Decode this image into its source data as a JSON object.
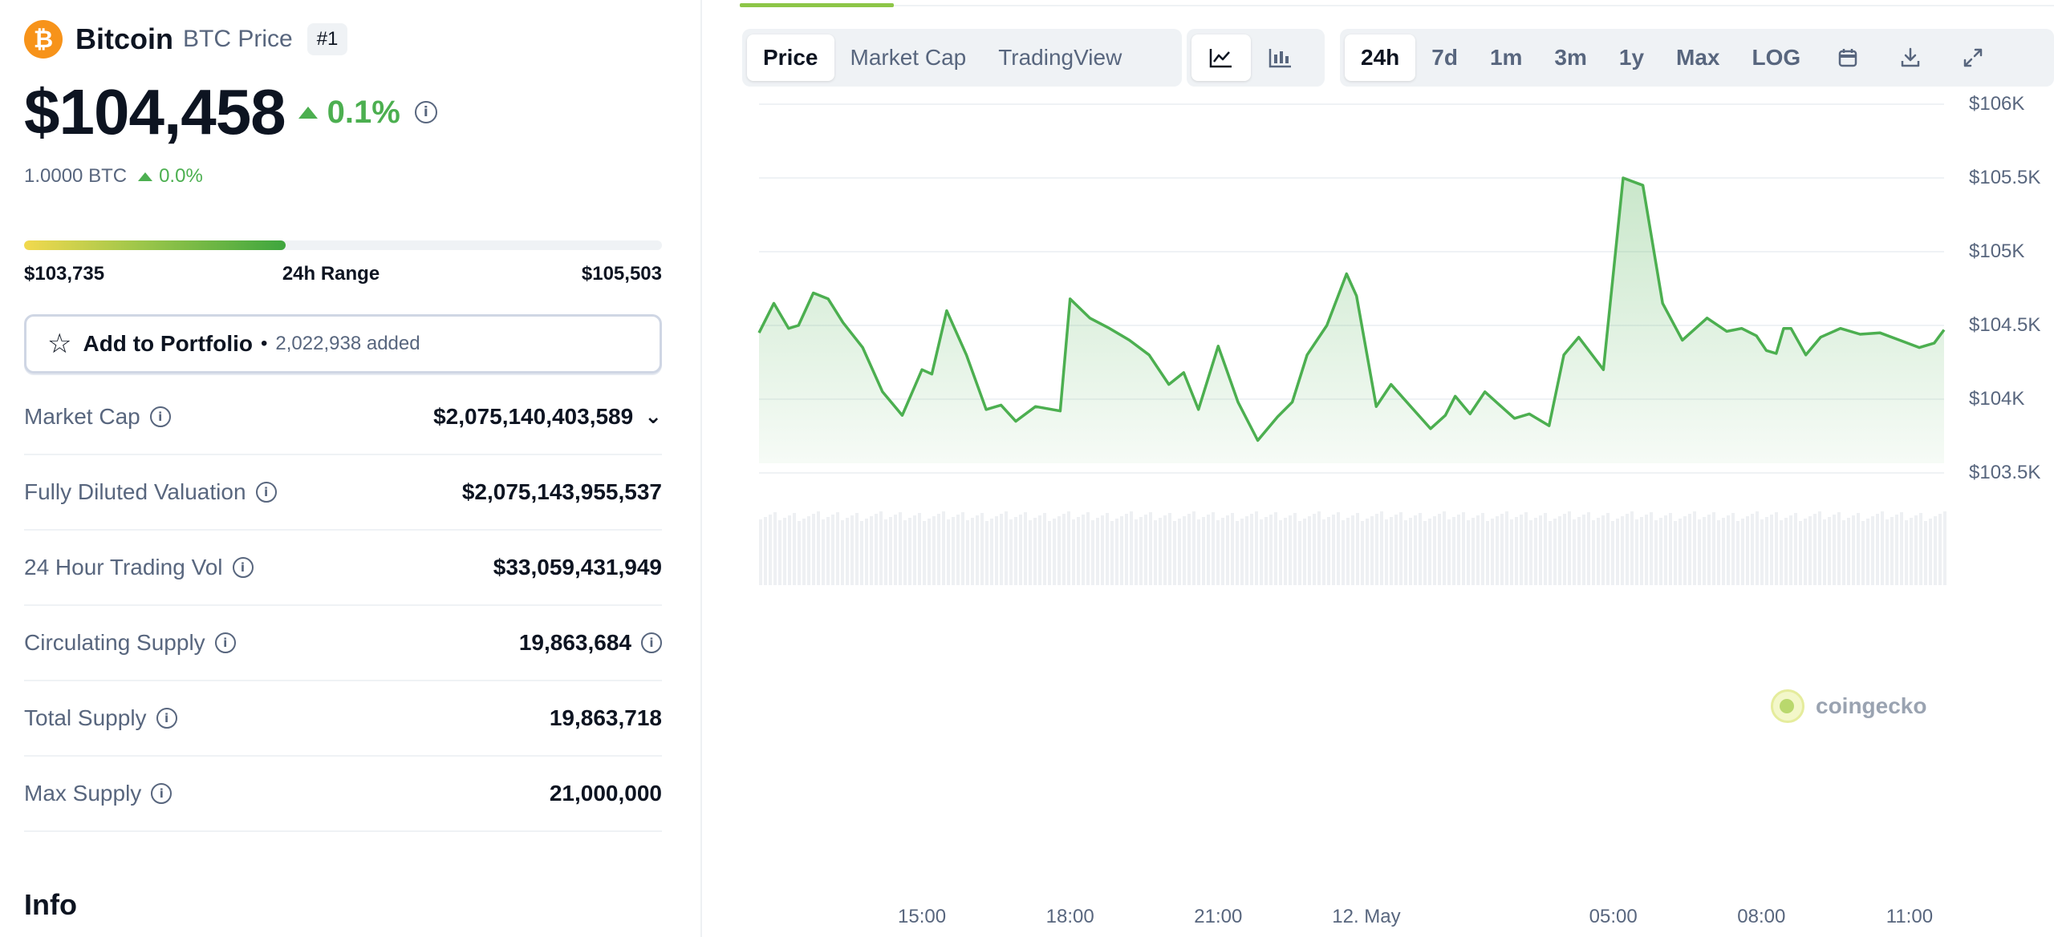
{
  "coin": {
    "logo_symbol": "₿",
    "name": "Bitcoin",
    "subtitle": "BTC Price",
    "rank": "#1",
    "price": "$104,458",
    "change_24h": "0.1%",
    "btc_value": "1.0000 BTC",
    "btc_change": "0.0%"
  },
  "range": {
    "low": "$103,735",
    "label": "24h Range",
    "high": "$105,503",
    "position_fraction": 0.41
  },
  "portfolio": {
    "label": "Add to Portfolio",
    "separator": "•",
    "added": "2,022,938 added"
  },
  "stats": [
    {
      "label": "Market Cap",
      "value": "$2,075,140,403,589"
    },
    {
      "label": "Fully Diluted Valuation",
      "value": "$2,075,143,955,537"
    },
    {
      "label": "24 Hour Trading Vol",
      "value": "$33,059,431,949"
    },
    {
      "label": "Circulating Supply",
      "value": "19,863,684"
    },
    {
      "label": "Total Supply",
      "value": "19,863,718"
    },
    {
      "label": "Max Supply",
      "value": "21,000,000"
    }
  ],
  "info_heading": "Info",
  "tabs": {
    "chart_types": [
      "Price",
      "Market Cap",
      "TradingView"
    ],
    "active_chart_type": "Price",
    "view_icons": [
      "line-chart-icon",
      "candlestick-chart-icon"
    ],
    "timeframes": [
      "24h",
      "7d",
      "1m",
      "3m",
      "1y",
      "Max",
      "LOG"
    ],
    "active_timeframe": "24h",
    "tool_icons": [
      "calendar-icon",
      "download-icon",
      "expand-icon"
    ]
  },
  "watermark": "coingecko",
  "colors": {
    "accent_green": "#4caf50",
    "bitcoin_orange": "#f7931a",
    "text_primary": "#0d1421",
    "text_secondary": "#58667e"
  },
  "chart_data": {
    "type": "area",
    "y_ticks": [
      "$106K",
      "$105.5K",
      "$105K",
      "$104.5K",
      "$104K",
      "$103.5K"
    ],
    "y_tick_values": [
      106000,
      105500,
      105000,
      104500,
      104000,
      103500
    ],
    "ylim": [
      103500,
      106000
    ],
    "x_ticks": [
      "15:00",
      "18:00",
      "21:00",
      "12. May",
      "05:00",
      "08:00",
      "11:00"
    ],
    "x_tick_hours": [
      15,
      18,
      21,
      24,
      29,
      32,
      35
    ],
    "x_range_hours": [
      11.7,
      35.7
    ],
    "grid": true,
    "series": [
      {
        "x": [
          11.7,
          12.0,
          12.3,
          12.5,
          12.8,
          13.1,
          13.4,
          13.8,
          14.2,
          14.6,
          15.0,
          15.2,
          15.5,
          15.9,
          16.3,
          16.6,
          16.9,
          17.3,
          17.8,
          18.0,
          18.4,
          18.8,
          19.2,
          19.6,
          20.0,
          20.3,
          20.6,
          21.0,
          21.4,
          21.8,
          22.2,
          22.5,
          22.8,
          23.2,
          23.6,
          23.8,
          24.2,
          24.5,
          24.9,
          25.3,
          25.6,
          25.8,
          26.1,
          26.4,
          26.7,
          27.0,
          27.3,
          27.7,
          28.0,
          28.3,
          28.8,
          29.2,
          29.6,
          30.0,
          30.4,
          30.9,
          31.3,
          31.6,
          31.9,
          32.1,
          32.3,
          32.45,
          32.6,
          32.9,
          33.2,
          33.6,
          34.0,
          34.4,
          34.8,
          35.2,
          35.5,
          35.7
        ],
        "y": [
          104450,
          104650,
          104480,
          104500,
          104720,
          104680,
          104520,
          104350,
          104050,
          103890,
          104200,
          104170,
          104600,
          104300,
          103930,
          103960,
          103850,
          103950,
          103920,
          104680,
          104550,
          104480,
          104400,
          104300,
          104100,
          104180,
          103930,
          104360,
          103980,
          103720,
          103880,
          103980,
          104300,
          104500,
          104850,
          104700,
          103950,
          104100,
          103950,
          103800,
          103890,
          104020,
          103900,
          104050,
          103960,
          103870,
          103900,
          103820,
          104300,
          104420,
          104200,
          105500,
          105450,
          104650,
          104400,
          104550,
          104460,
          104480,
          104430,
          104330,
          104310,
          104480,
          104480,
          104300,
          104420,
          104480,
          104440,
          104450,
          104400,
          104350,
          104380,
          104470
        ]
      }
    ],
    "volume_series": "uniform bars"
  }
}
